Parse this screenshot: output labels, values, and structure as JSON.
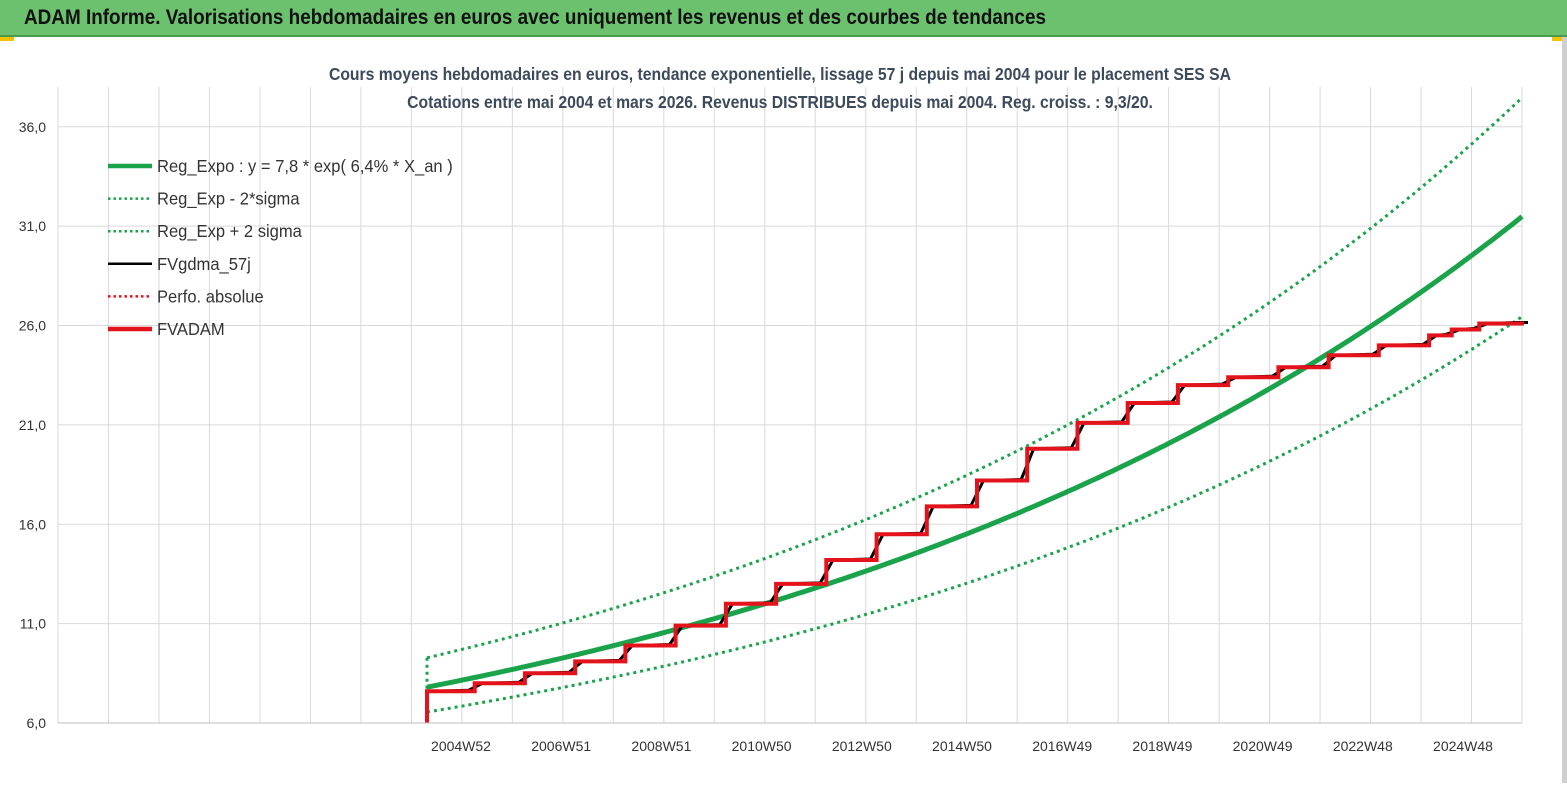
{
  "header": {
    "title": "ADAM Informe. Valorisations hebdomadaires en euros avec uniquement les revenus et des courbes de tendances"
  },
  "colors": {
    "banner": "#6cc16e",
    "trend": "#1aa34a",
    "smoothed": "#000000",
    "adam": "#e4131b",
    "grid": "#d9d9d9"
  },
  "chart_data": {
    "type": "line",
    "title": "Cours moyens hebdomadaires en euros, tendance exponentielle, lissage 57 j depuis mai 2004 pour le placement SES SA",
    "subtitle": "Cotations entre mai 2004 et mars 2026. Revenus DISTRIBUES depuis mai 2004. Reg. croiss. : 9,3/20.",
    "xlabel": "",
    "ylabel": "",
    "ylim": [
      6.0,
      38.0
    ],
    "y_ticks": [
      "6,0",
      "11,0",
      "16,0",
      "21,0",
      "26,0",
      "31,0",
      "36,0"
    ],
    "x_ticks": [
      "2004W52",
      "2006W51",
      "2008W51",
      "2010W50",
      "2012W50",
      "2014W50",
      "2016W49",
      "2018W49",
      "2020W49",
      "2022W48",
      "2024W48"
    ],
    "x_range": [
      2004.4,
      2026.2
    ],
    "grid": true,
    "legend_position": "top-left",
    "legend": [
      {
        "label": "Reg_Expo : y = 7,8 * exp( 6,4% *  X_an )",
        "style": "solid-thick",
        "color": "#1aa34a"
      },
      {
        "label": "Reg_Exp - 2*sigma",
        "style": "dotted",
        "color": "#1aa34a"
      },
      {
        "label": "Reg_Exp + 2 sigma",
        "style": "dotted",
        "color": "#1aa34a"
      },
      {
        "label": "FVgdma_57j",
        "style": "solid",
        "color": "#000000"
      },
      {
        "label": "Perfo. absolue",
        "style": "dotted",
        "color": "#e4131b"
      },
      {
        "label": "FVADAM",
        "style": "solid-thick",
        "color": "#e4131b"
      }
    ],
    "trend_model": {
      "a": 7.8,
      "rate": 0.064,
      "x0": 2004.4
    },
    "sigma_band": {
      "lower_factor": 0.84,
      "upper_factor": 1.19
    },
    "fvadam_steps": {
      "x": [
        2004.4,
        2005.35,
        2006.35,
        2007.35,
        2008.35,
        2009.35,
        2010.35,
        2011.35,
        2012.35,
        2013.35,
        2014.35,
        2015.35,
        2016.35,
        2017.35,
        2018.35,
        2019.35,
        2020.35,
        2021.35,
        2022.35,
        2023.35,
        2024.35,
        2024.8,
        2025.35,
        2026.2
      ],
      "y": [
        7.6,
        8.0,
        8.5,
        9.1,
        9.9,
        10.9,
        12.0,
        13.0,
        14.2,
        15.5,
        16.9,
        18.2,
        19.8,
        21.1,
        22.1,
        23.0,
        23.4,
        23.9,
        24.5,
        25.0,
        25.5,
        25.8,
        26.1,
        26.2
      ]
    }
  }
}
